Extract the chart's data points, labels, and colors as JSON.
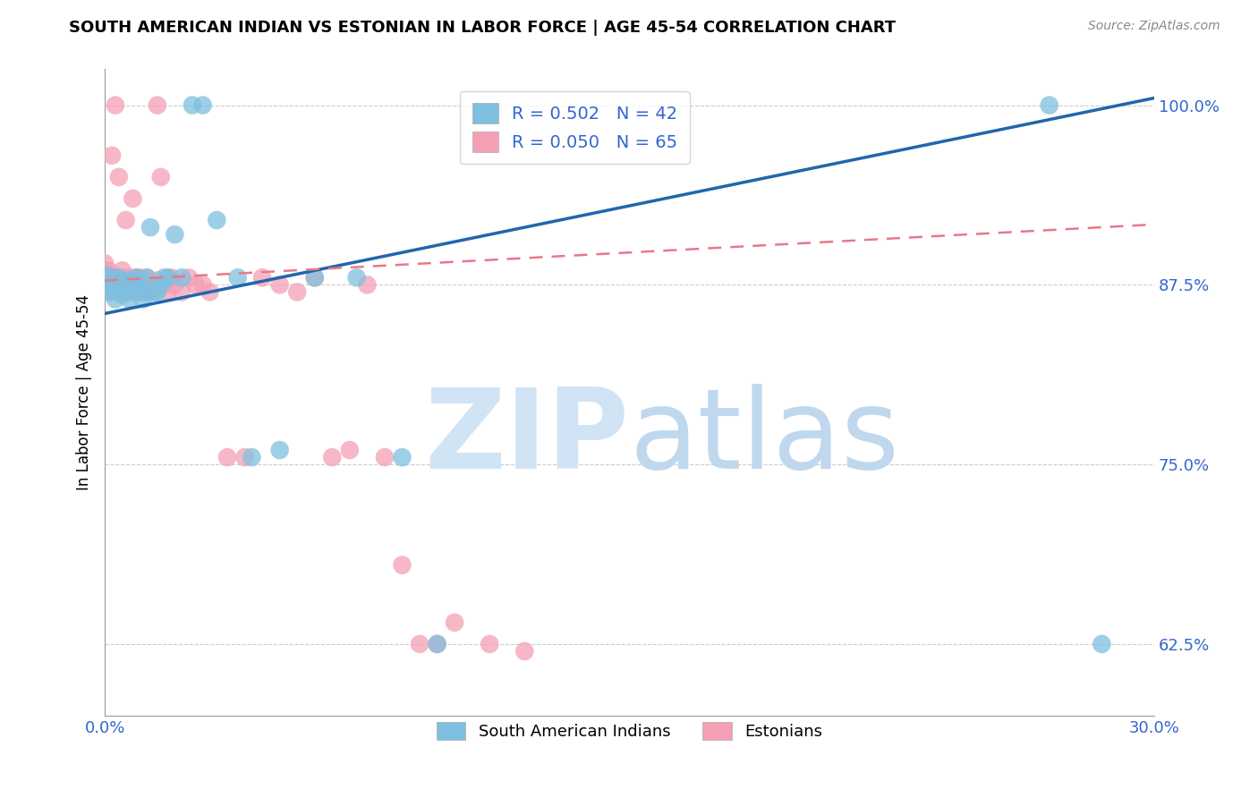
{
  "title": "SOUTH AMERICAN INDIAN VS ESTONIAN IN LABOR FORCE | AGE 45-54 CORRELATION CHART",
  "source": "Source: ZipAtlas.com",
  "ylabel": "In Labor Force | Age 45-54",
  "xlim": [
    0.0,
    0.3
  ],
  "ylim": [
    0.575,
    1.025
  ],
  "yticks": [
    0.625,
    0.75,
    0.875,
    1.0
  ],
  "ytick_labels": [
    "62.5%",
    "75.0%",
    "87.5%",
    "100.0%"
  ],
  "xticks": [
    0.0,
    0.05,
    0.1,
    0.15,
    0.2,
    0.25,
    0.3
  ],
  "xtick_labels": [
    "0.0%",
    "",
    "",
    "",
    "",
    "",
    "30.0%"
  ],
  "blue_R": 0.502,
  "blue_N": 42,
  "pink_R": 0.05,
  "pink_N": 65,
  "blue_color": "#7fbfdf",
  "pink_color": "#f4a0b5",
  "blue_line_color": "#2166ac",
  "pink_line_color": "#e8788a",
  "grid_color": "#cccccc",
  "watermark_zip_color": "#d0e4f5",
  "watermark_atlas_color": "#c0d8ee",
  "blue_scatter_x": [
    0.0,
    0.0,
    0.001,
    0.001,
    0.002,
    0.002,
    0.003,
    0.003,
    0.004,
    0.004,
    0.005,
    0.005,
    0.006,
    0.007,
    0.007,
    0.008,
    0.009,
    0.01,
    0.01,
    0.011,
    0.012,
    0.012,
    0.013,
    0.014,
    0.015,
    0.016,
    0.017,
    0.018,
    0.02,
    0.022,
    0.025,
    0.028,
    0.032,
    0.038,
    0.042,
    0.05,
    0.06,
    0.072,
    0.085,
    0.095,
    0.27,
    0.285
  ],
  "blue_scatter_y": [
    0.875,
    0.882,
    0.87,
    0.878,
    0.872,
    0.88,
    0.865,
    0.875,
    0.87,
    0.88,
    0.868,
    0.878,
    0.87,
    0.865,
    0.878,
    0.875,
    0.88,
    0.87,
    0.878,
    0.865,
    0.87,
    0.88,
    0.915,
    0.87,
    0.87,
    0.875,
    0.88,
    0.88,
    0.91,
    0.88,
    1.0,
    1.0,
    0.92,
    0.88,
    0.755,
    0.76,
    0.88,
    0.88,
    0.755,
    0.625,
    1.0,
    0.625
  ],
  "pink_scatter_x": [
    0.0,
    0.0,
    0.0,
    0.0,
    0.001,
    0.001,
    0.001,
    0.002,
    0.002,
    0.002,
    0.003,
    0.003,
    0.003,
    0.004,
    0.004,
    0.004,
    0.005,
    0.005,
    0.005,
    0.006,
    0.006,
    0.006,
    0.007,
    0.007,
    0.007,
    0.008,
    0.008,
    0.008,
    0.009,
    0.009,
    0.01,
    0.01,
    0.011,
    0.012,
    0.012,
    0.013,
    0.014,
    0.015,
    0.015,
    0.016,
    0.017,
    0.018,
    0.019,
    0.02,
    0.022,
    0.024,
    0.026,
    0.028,
    0.03,
    0.035,
    0.04,
    0.045,
    0.05,
    0.055,
    0.06,
    0.065,
    0.07,
    0.075,
    0.08,
    0.085,
    0.09,
    0.095,
    0.1,
    0.11,
    0.12
  ],
  "pink_scatter_y": [
    0.875,
    0.88,
    0.885,
    0.89,
    0.875,
    0.88,
    0.885,
    0.87,
    0.88,
    0.965,
    0.875,
    0.88,
    1.0,
    0.875,
    0.88,
    0.95,
    0.87,
    0.878,
    0.885,
    0.875,
    0.88,
    0.92,
    0.87,
    0.875,
    0.88,
    0.87,
    0.878,
    0.935,
    0.875,
    0.88,
    0.87,
    0.88,
    0.878,
    0.87,
    0.88,
    0.875,
    0.87,
    0.878,
    1.0,
    0.95,
    0.875,
    0.87,
    0.88,
    0.875,
    0.87,
    0.88,
    0.875,
    0.875,
    0.87,
    0.755,
    0.755,
    0.88,
    0.875,
    0.87,
    0.88,
    0.755,
    0.76,
    0.875,
    0.755,
    0.68,
    0.625,
    0.625,
    0.64,
    0.625,
    0.62
  ],
  "blue_trend_x": [
    0.0,
    0.3
  ],
  "blue_trend_y": [
    0.855,
    1.005
  ],
  "pink_trend_x": [
    0.0,
    0.3
  ],
  "pink_trend_y": [
    0.878,
    0.917
  ]
}
